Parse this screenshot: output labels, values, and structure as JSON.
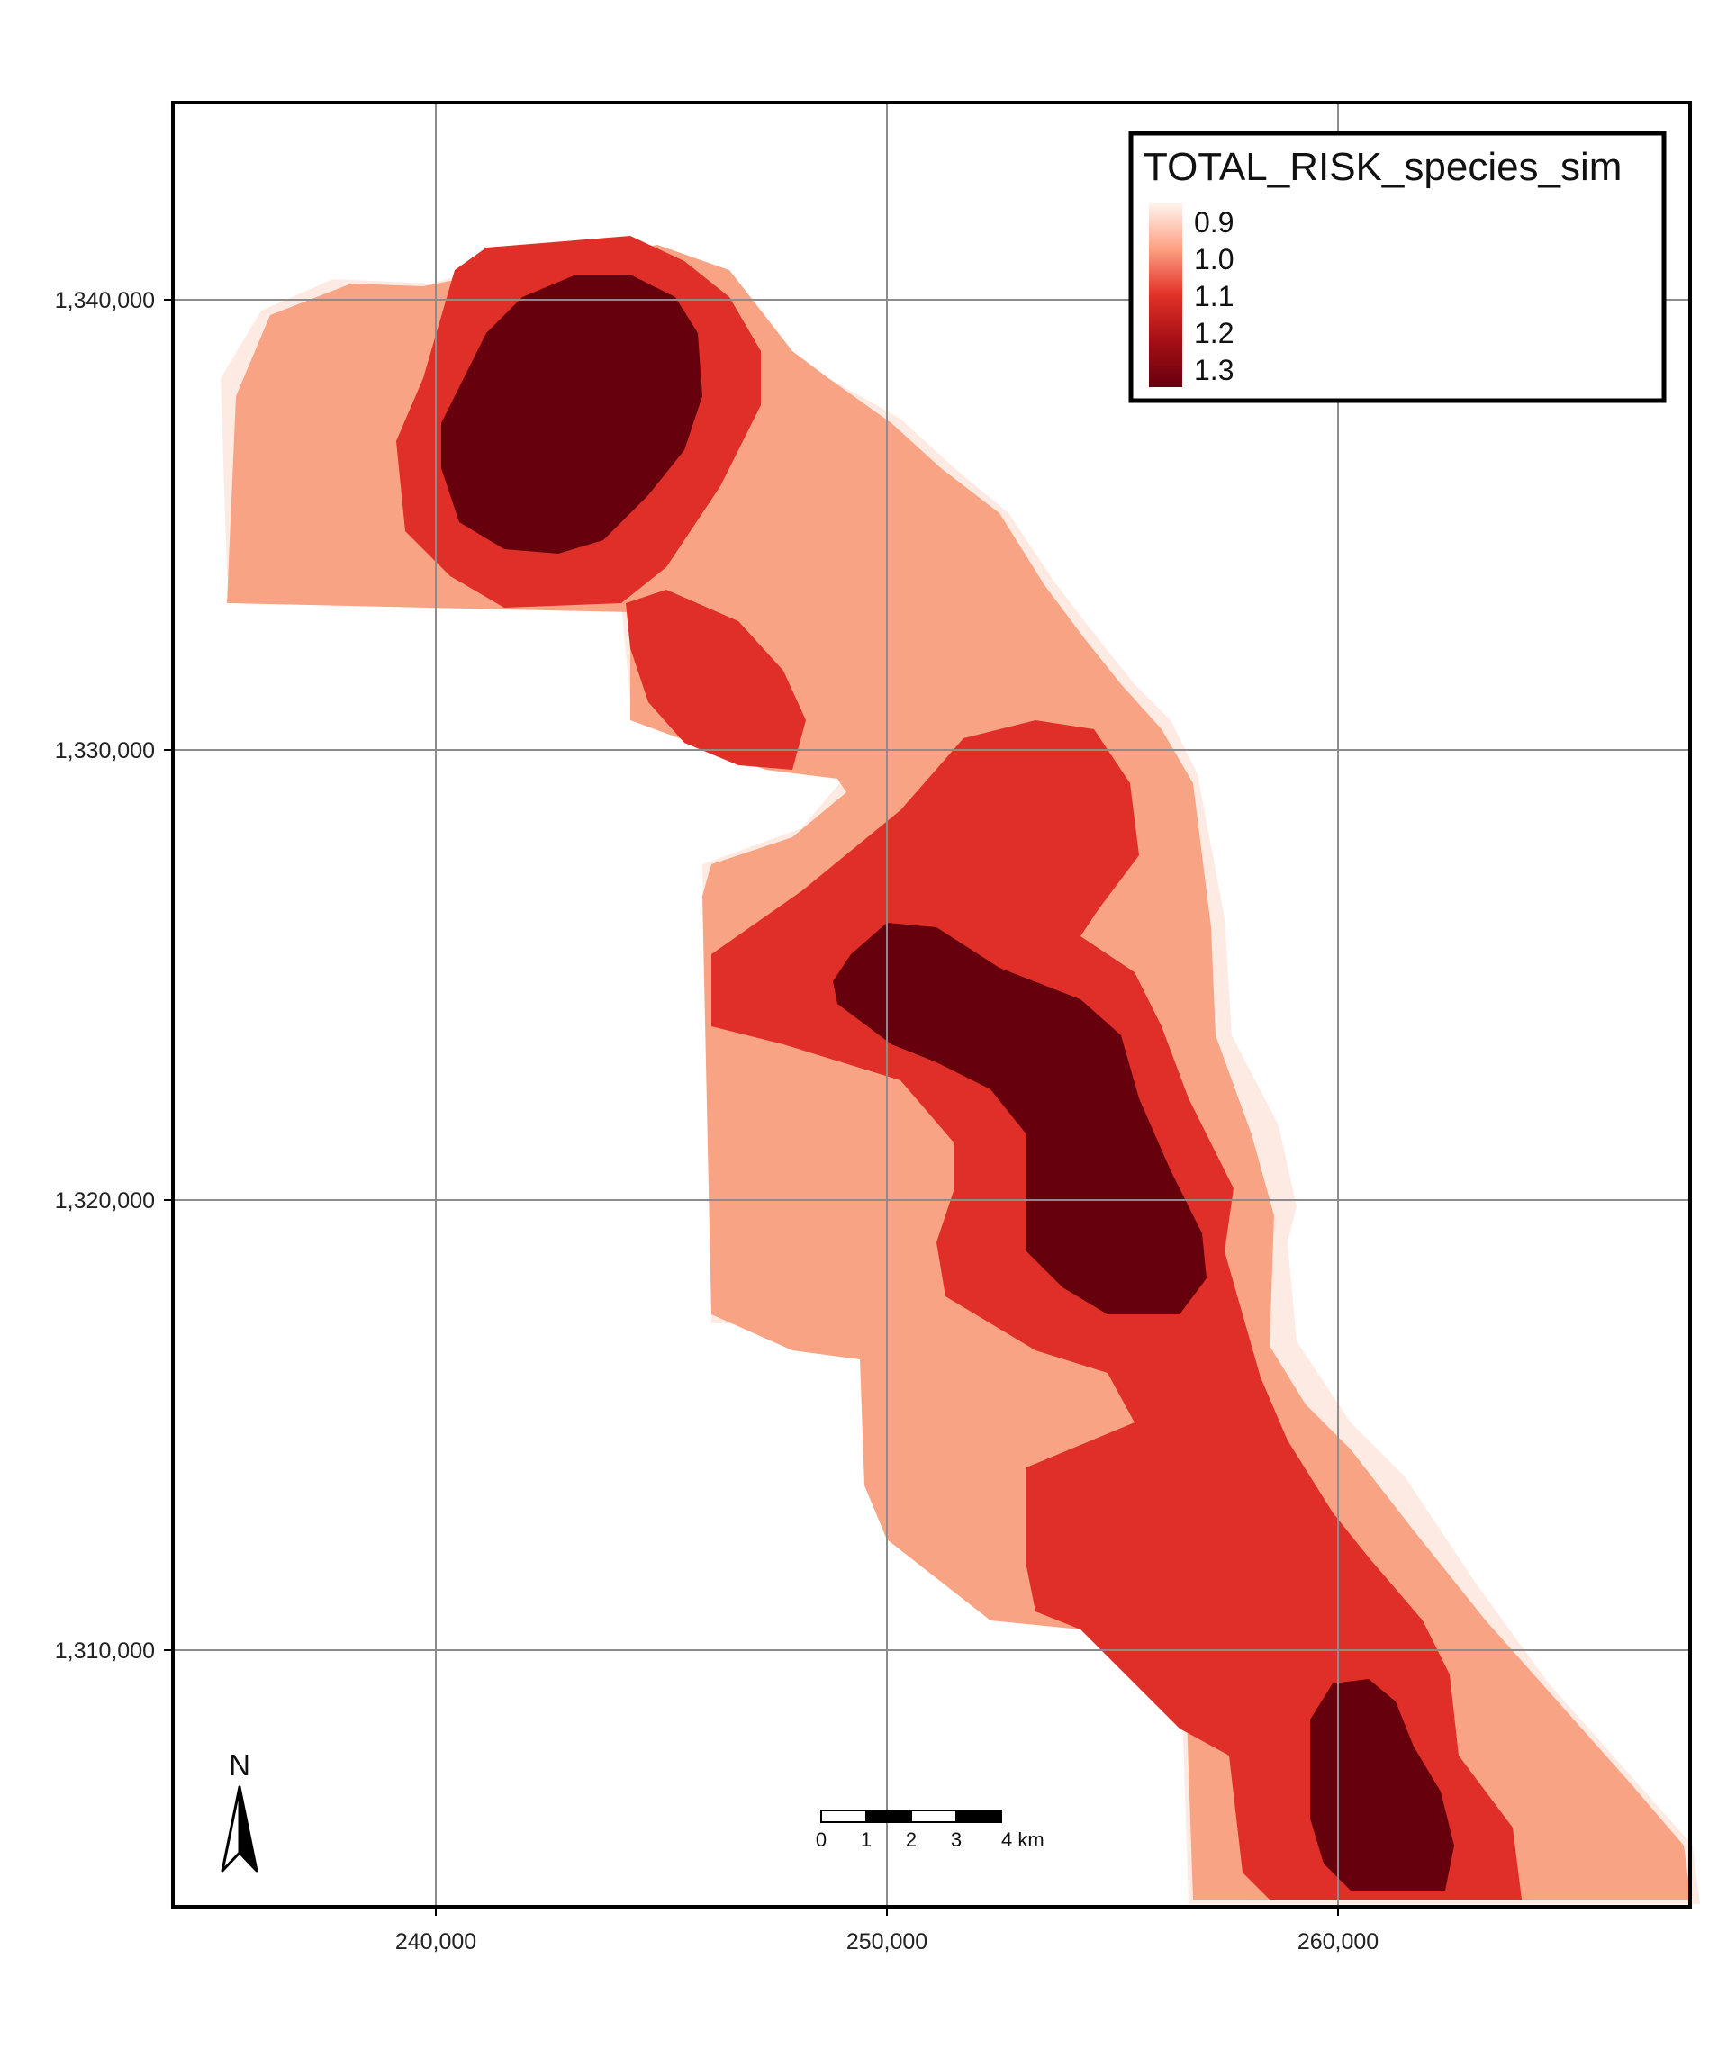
{
  "legend": {
    "title": "TOTAL_RISK_species_sim",
    "labels": [
      "0.9",
      "1.0",
      "1.1",
      "1.2",
      "1.3"
    ],
    "colors": [
      "#fff5f0",
      "#fca082",
      "#e23128",
      "#a50f15",
      "#67000d"
    ]
  },
  "axes": {
    "x_ticks": [
      "240,000",
      "250,000",
      "260,000"
    ],
    "y_ticks": [
      "1,340,000",
      "1,330,000",
      "1,320,000",
      "1,310,000"
    ]
  },
  "scale_bar": {
    "labels": [
      "0",
      "1",
      "2",
      "3",
      "4 km"
    ]
  },
  "north_arrow": {
    "label": "N",
    "icon": "north-arrow-icon"
  },
  "classes": {
    "pale": "#fdebe3",
    "low": "#f8a384",
    "mid": "#df2f28",
    "high": "#67000d"
  }
}
